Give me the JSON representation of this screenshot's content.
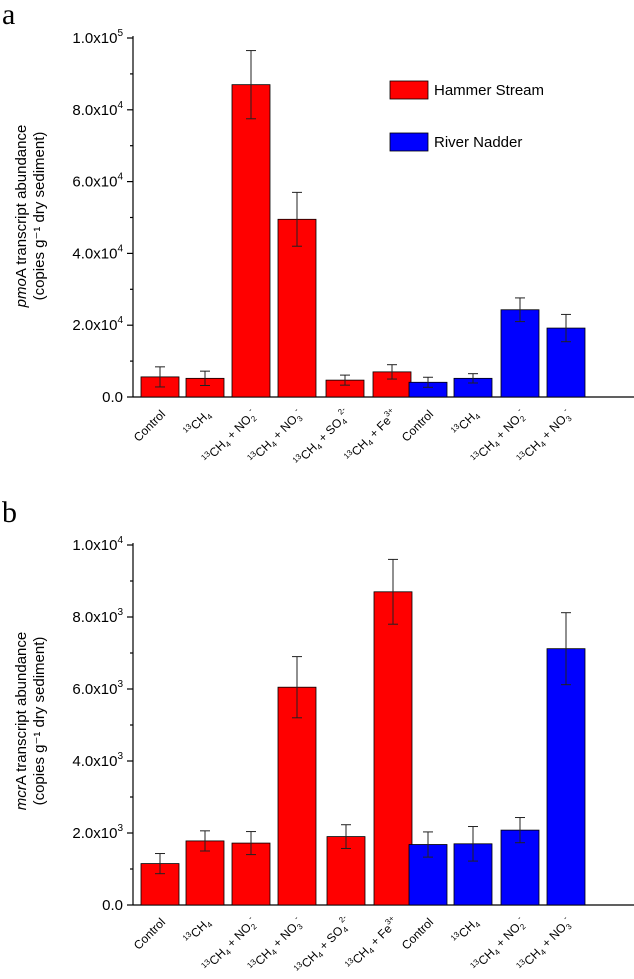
{
  "chart_data": [
    {
      "type": "bar",
      "panel_label": "a",
      "ylabel_gene": "pmo",
      "ylabel_rest": "A transcript abundance",
      "ylabel_line2": "(copies g⁻¹ dry sediment)",
      "ylim": [
        0,
        100000
      ],
      "yticks": [
        {
          "mantissa": "0.0",
          "exp": ""
        },
        {
          "mantissa": "2.0x10",
          "exp": "4"
        },
        {
          "mantissa": "4.0x10",
          "exp": "4"
        },
        {
          "mantissa": "6.0x10",
          "exp": "4"
        },
        {
          "mantissa": "8.0x10",
          "exp": "4"
        },
        {
          "mantissa": "1.0x10",
          "exp": "5"
        }
      ],
      "legend": [
        {
          "label": "Hammer Stream",
          "color": "#ff0000"
        },
        {
          "label": "River Nadder",
          "color": "#0000ff"
        }
      ],
      "bars": [
        {
          "category": "Control",
          "group": 0,
          "value": 5600,
          "error": 2800
        },
        {
          "category": "13CH4",
          "group": 0,
          "value": 5200,
          "error": 2000
        },
        {
          "category": "13CH4 + NO2-",
          "group": 0,
          "value": 87000,
          "error": 9500
        },
        {
          "category": "13CH4 + NO3-",
          "group": 0,
          "value": 49500,
          "error": 7500
        },
        {
          "category": "13CH4 + SO42-",
          "group": 0,
          "value": 4700,
          "error": 1400
        },
        {
          "category": "13CH4 + Fe3+",
          "group": 0,
          "value": 7000,
          "error": 2000
        },
        {
          "category": "Control",
          "group": 1,
          "value": 4100,
          "error": 1400
        },
        {
          "category": "13CH4",
          "group": 1,
          "value": 5200,
          "error": 1300
        },
        {
          "category": "13CH4 + NO2-",
          "group": 1,
          "value": 24300,
          "error": 3300
        },
        {
          "category": "13CH4 + NO3-",
          "group": 1,
          "value": 19200,
          "error": 3800
        }
      ]
    },
    {
      "type": "bar",
      "panel_label": "b",
      "ylabel_gene": "mcr",
      "ylabel_rest": "A transcript abundance",
      "ylabel_line2": "(copies g⁻¹ dry sediment)",
      "ylim": [
        0,
        10000
      ],
      "yticks": [
        {
          "mantissa": "0.0",
          "exp": ""
        },
        {
          "mantissa": "2.0x10",
          "exp": "3"
        },
        {
          "mantissa": "4.0x10",
          "exp": "3"
        },
        {
          "mantissa": "6.0x10",
          "exp": "3"
        },
        {
          "mantissa": "8.0x10",
          "exp": "3"
        },
        {
          "mantissa": "1.0x10",
          "exp": "4"
        }
      ],
      "legend": [],
      "bars": [
        {
          "category": "Control",
          "group": 0,
          "value": 1150,
          "error": 280
        },
        {
          "category": "13CH4",
          "group": 0,
          "value": 1780,
          "error": 280
        },
        {
          "category": "13CH4 + NO2-",
          "group": 0,
          "value": 1720,
          "error": 320
        },
        {
          "category": "13CH4 + NO3-",
          "group": 0,
          "value": 6050,
          "error": 850
        },
        {
          "category": "13CH4 + SO42-",
          "group": 0,
          "value": 1900,
          "error": 330
        },
        {
          "category": "13CH4 + Fe3+",
          "group": 0,
          "value": 8700,
          "error": 900
        },
        {
          "category": "Control",
          "group": 1,
          "value": 1680,
          "error": 350
        },
        {
          "category": "13CH4",
          "group": 1,
          "value": 1700,
          "error": 480
        },
        {
          "category": "13CH4 + NO2-",
          "group": 1,
          "value": 2080,
          "error": 350
        },
        {
          "category": "13CH4 + NO3-",
          "group": 1,
          "value": 7120,
          "error": 1000
        }
      ]
    }
  ]
}
